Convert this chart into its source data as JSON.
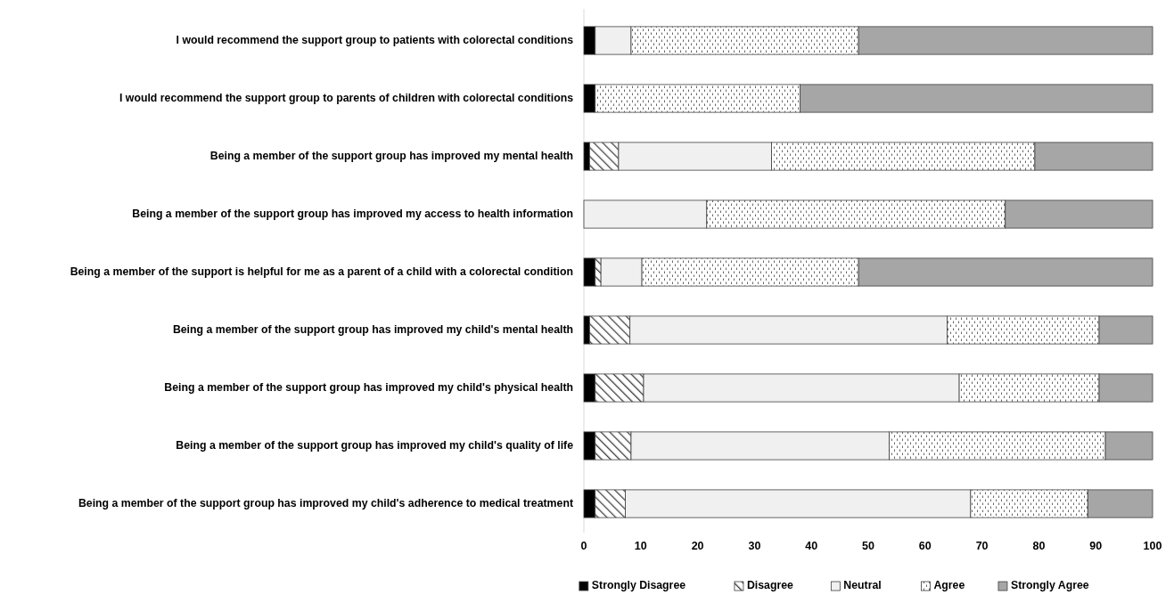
{
  "chart_data": {
    "type": "bar",
    "orientation": "horizontal",
    "stacked": true,
    "categories": [
      "I would recommend the support group to patients with colorectal conditions",
      "I would recommend the support group to parents of children with colorectal conditions",
      "Being a member of the support group has improved my mental health",
      "Being a member of the support group has improved my access to health information",
      "Being a member of the support is helpful for me as a parent of a child with a colorectal condition",
      "Being a member of the support group has improved my child's mental health",
      "Being a member of the support group has improved my child's physical health",
      "Being a member of the support group has improved my child's quality of life",
      "Being a member of the support group has improved my child's adherence to medical treatment"
    ],
    "series": [
      {
        "name": "Strongly Disagree",
        "color": "#000000",
        "values": [
          2,
          2,
          1,
          0,
          2,
          1,
          2,
          2,
          2
        ]
      },
      {
        "name": "Disagree",
        "color": "#404040",
        "values": [
          0,
          0,
          5.1,
          0,
          1,
          7.1,
          8.5,
          6.3,
          5.3
        ]
      },
      {
        "name": "Neutral",
        "color": "#f0f0f0",
        "values": [
          6.3,
          0,
          26.9,
          21.6,
          7.2,
          55.8,
          55.5,
          45.4,
          60.7
        ]
      },
      {
        "name": "Agree",
        "color": "#404040",
        "values": [
          40,
          36,
          46.3,
          52.5,
          38.1,
          26.7,
          24.6,
          38,
          20.6
        ]
      },
      {
        "name": "Strongly Agree",
        "color": "#a6a6a6",
        "values": [
          51.7,
          62,
          20.7,
          25.9,
          51.7,
          9.4,
          9.4,
          8.3,
          11.4
        ]
      }
    ],
    "xlim": [
      0,
      100
    ],
    "xticks": [
      0,
      10,
      20,
      30,
      40,
      50,
      60,
      70,
      80,
      90,
      100
    ],
    "grid": false,
    "legend": "bottom"
  }
}
